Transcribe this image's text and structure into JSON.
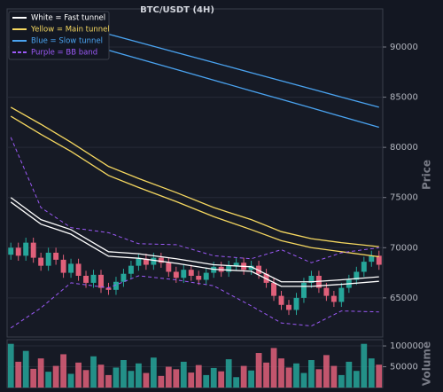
{
  "chart_data": {
    "type": "candlestick",
    "title": "BTC/USDT (4H)",
    "ylabel": "Price",
    "y2label": "Volume",
    "categories": [
      null,
      null,
      null,
      null,
      null,
      null,
      null,
      null,
      null,
      null,
      null,
      null,
      null,
      null,
      null,
      null,
      null,
      null,
      null,
      null,
      null,
      null,
      null,
      null,
      null,
      null,
      null,
      null,
      null,
      null,
      null,
      null,
      null,
      null,
      null,
      null,
      null,
      null,
      null,
      null,
      null,
      null,
      null,
      null,
      null,
      null,
      null,
      null,
      null,
      null
    ],
    "open": [
      69300,
      70000,
      69200,
      70500,
      69000,
      68200,
      69500,
      68800,
      67500,
      68400,
      67200,
      66500,
      67300,
      66000,
      65800,
      66600,
      67400,
      68200,
      68900,
      68300,
      69000,
      68500,
      67600,
      67000,
      67800,
      67200,
      66800,
      67500,
      68100,
      67600,
      68200,
      68500,
      67800,
      68200,
      67400,
      66500,
      65200,
      64300,
      63800,
      65000,
      66500,
      67200,
      66000,
      65200,
      64600,
      66000,
      66800,
      67600,
      68600,
      69200
    ],
    "high": [
      70500,
      70500,
      71000,
      71000,
      69500,
      70000,
      70000,
      69300,
      68900,
      68900,
      67700,
      67800,
      67800,
      66500,
      67100,
      67900,
      68700,
      69400,
      69400,
      69500,
      69500,
      69000,
      68100,
      68300,
      68300,
      67700,
      68000,
      68600,
      68600,
      68700,
      69000,
      69000,
      68700,
      68700,
      67900,
      67000,
      65700,
      64800,
      65500,
      67000,
      67700,
      67700,
      66500,
      65700,
      66500,
      67300,
      68100,
      69100,
      69700,
      69700
    ],
    "low": [
      68800,
      68700,
      68700,
      68500,
      67700,
      67700,
      68300,
      67000,
      67000,
      66700,
      66000,
      66000,
      65500,
      65300,
      65300,
      66100,
      66900,
      67700,
      67800,
      67800,
      68000,
      67100,
      66500,
      66500,
      66700,
      66300,
      66300,
      67000,
      67100,
      67100,
      67700,
      67300,
      67300,
      66900,
      66000,
      64700,
      63800,
      63300,
      63300,
      64500,
      66000,
      65500,
      64700,
      64100,
      64100,
      65500,
      66300,
      67100,
      68100,
      67800
    ],
    "close": [
      70000,
      69200,
      70500,
      69000,
      68200,
      69500,
      68800,
      67500,
      68400,
      67200,
      66500,
      67300,
      66000,
      65800,
      66600,
      67400,
      68200,
      68900,
      68300,
      69000,
      68500,
      67600,
      67000,
      67800,
      67200,
      66800,
      67500,
      68100,
      67600,
      68200,
      68500,
      67800,
      68200,
      67400,
      66500,
      65200,
      64300,
      63800,
      65000,
      66500,
      67200,
      66000,
      65200,
      64600,
      66000,
      66800,
      67600,
      68600,
      69200,
      68300
    ],
    "volume": [
      105000,
      62000,
      88000,
      45000,
      70000,
      38000,
      52000,
      80000,
      33000,
      60000,
      42000,
      75000,
      55000,
      30000,
      48000,
      66000,
      40000,
      58000,
      35000,
      72000,
      28000,
      50000,
      44000,
      62000,
      36000,
      54000,
      30000,
      47000,
      39000,
      68000,
      25000,
      52000,
      41000,
      83000,
      60000,
      95000,
      70000,
      48000,
      58000,
      35000,
      66000,
      44000,
      78000,
      52000,
      30000,
      62000,
      40000,
      105000,
      70000,
      55000
    ],
    "up_color": "#26a69a",
    "down_color": "#e0607a",
    "ylim": [
      61100,
      93800
    ],
    "yticks": [
      65000,
      70000,
      75000,
      80000,
      85000,
      90000
    ],
    "y2lim": [
      0,
      115000
    ],
    "y2ticks": [
      50000,
      100000
    ],
    "grid": true,
    "lines": [
      {
        "color": "#4aa3f0",
        "dash": false,
        "x": [
          4,
          8,
          13,
          17,
          22,
          27,
          32,
          36,
          40,
          44,
          49
        ],
        "values": [
          93100,
          92290,
          91280,
          90470,
          89460,
          88450,
          87440,
          86630,
          85820,
          85010,
          84000
        ]
      },
      {
        "color": "#4aa3f0",
        "dash": false,
        "x": [
          4,
          8,
          13,
          17,
          22,
          27,
          32,
          36,
          40,
          44,
          49
        ],
        "values": [
          91600,
          90750,
          89680,
          88830,
          87770,
          86700,
          85630,
          84780,
          83930,
          83070,
          82000
        ]
      },
      {
        "color": "#f6d860",
        "dash": false,
        "x": [
          0,
          4,
          8,
          13,
          17,
          22,
          27,
          32,
          36,
          40,
          44,
          49
        ],
        "values": [
          84000,
          82300,
          80500,
          78100,
          76900,
          75500,
          74000,
          72800,
          71600,
          70900,
          70500,
          70100
        ]
      },
      {
        "color": "#f6d860",
        "dash": false,
        "x": [
          0,
          4,
          8,
          13,
          17,
          22,
          27,
          32,
          36,
          40,
          44,
          49
        ],
        "values": [
          83100,
          81300,
          79600,
          77200,
          76000,
          74600,
          73100,
          71800,
          70700,
          70000,
          69600,
          69100
        ]
      },
      {
        "color": "#9b59f6",
        "dash": true,
        "x": [
          0,
          4,
          8,
          13,
          17,
          22,
          27,
          32,
          36,
          40,
          44,
          49
        ],
        "values": [
          81000,
          74000,
          72000,
          71500,
          70400,
          70300,
          69200,
          68900,
          69800,
          68500,
          69500,
          70000
        ]
      },
      {
        "color": "#9b59f6",
        "dash": true,
        "x": [
          0,
          4,
          8,
          13,
          17,
          22,
          27,
          32,
          36,
          40,
          44,
          49
        ],
        "values": [
          62000,
          64000,
          66500,
          66000,
          67200,
          66800,
          66200,
          64200,
          62500,
          62200,
          63700,
          63600
        ]
      },
      {
        "color": "#ffffff",
        "dash": false,
        "x": [
          0,
          4,
          8,
          13,
          17,
          22,
          27,
          32,
          36,
          40,
          44,
          49
        ],
        "values": [
          75000,
          72800,
          71800,
          69600,
          69400,
          68900,
          68300,
          68100,
          66600,
          66600,
          66800,
          67100
        ]
      },
      {
        "color": "#ffffff",
        "dash": false,
        "x": [
          0,
          4,
          8,
          13,
          17,
          22,
          27,
          32,
          36,
          40,
          44,
          49
        ],
        "values": [
          74550,
          72350,
          71350,
          69150,
          68950,
          68450,
          67850,
          67650,
          66150,
          66150,
          66350,
          66650
        ]
      }
    ],
    "legend": [
      {
        "label": "White = Fast tunnel",
        "color": "#ffffff",
        "dash": false
      },
      {
        "label": "Yellow = Main tunnel",
        "color": "#f6d860",
        "dash": false
      },
      {
        "label": "Blue = Slow tunnel",
        "color": "#4aa3f0",
        "dash": false
      },
      {
        "label": "Purple = BB band",
        "color": "#9b59f6",
        "dash": true
      }
    ]
  }
}
